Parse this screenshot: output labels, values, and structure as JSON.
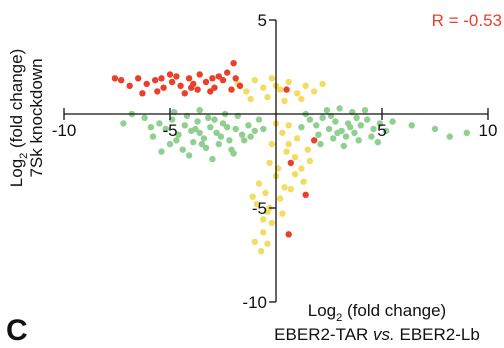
{
  "panel_label": "C",
  "colors": {
    "green": "#8fcf8f",
    "yellow": "#f2dc62",
    "red": "#e8402a",
    "axis": "#111111",
    "annotation": "#e8402a"
  },
  "chart_data": {
    "type": "scatter",
    "title": "",
    "annotation": "R = -0.53",
    "xlabel": {
      "line1_main": "Log",
      "line1_sub": "2",
      "line1_rest": " (fold change)",
      "line2_a": "EBER2-TAR ",
      "line2_italic": "vs.",
      "line2_b": " EBER2-Lb"
    },
    "ylabel": {
      "line1_main": "Log",
      "line1_sub": "2",
      "line1_rest": " (fold change)",
      "line2": "7Sk knockdown"
    },
    "xlim": [
      -10,
      10
    ],
    "ylim": [
      -10,
      5
    ],
    "x_ticks": [
      {
        "value": -10,
        "label": "-10"
      },
      {
        "value": -5,
        "label": "-5"
      },
      {
        "value": 5,
        "label": "5"
      },
      {
        "value": 10,
        "label": "10"
      }
    ],
    "y_ticks": [
      {
        "value": 5,
        "label": "5"
      },
      {
        "value": -5,
        "label": "-5"
      },
      {
        "value": -10,
        "label": "-10"
      }
    ],
    "grid": false,
    "series": [
      {
        "color_key": "green",
        "points": [
          [
            -5.5,
            -0.5
          ],
          [
            -5.2,
            -0.8
          ],
          [
            -4.9,
            -0.3
          ],
          [
            -4.6,
            -1.1
          ],
          [
            -4.3,
            -0.6
          ],
          [
            -4.0,
            -0.9
          ],
          [
            -3.7,
            -0.4
          ],
          [
            -3.4,
            -1.3
          ],
          [
            -3.1,
            -0.7
          ],
          [
            -2.8,
            -1.0
          ],
          [
            -2.5,
            -0.5
          ],
          [
            -2.2,
            -1.4
          ],
          [
            -1.9,
            -0.8
          ],
          [
            -1.6,
            -1.1
          ],
          [
            -1.3,
            -0.6
          ],
          [
            -1.0,
            -0.9
          ],
          [
            -5.8,
            -1.2
          ],
          [
            -5.0,
            -1.6
          ],
          [
            -4.4,
            -1.9
          ],
          [
            -3.9,
            -1.5
          ],
          [
            -3.3,
            -1.8
          ],
          [
            -2.7,
            -1.6
          ],
          [
            -2.1,
            -1.9
          ],
          [
            -1.5,
            -1.4
          ],
          [
            -6.2,
            -0.2
          ],
          [
            -4.8,
            0.1
          ],
          [
            -3.6,
            0.2
          ],
          [
            -2.4,
            0.0
          ],
          [
            -1.8,
            -0.1
          ],
          [
            -0.8,
            -0.3
          ],
          [
            -6.8,
            0.0
          ],
          [
            -7.2,
            -0.5
          ],
          [
            -4.1,
            -2.2
          ],
          [
            -3.0,
            -2.4
          ],
          [
            -2.0,
            -2.1
          ],
          [
            -5.4,
            -2.0
          ],
          [
            -3.6,
            -1.0
          ],
          [
            -3.2,
            -0.2
          ],
          [
            -2.6,
            -1.2
          ],
          [
            -4.7,
            -1.4
          ],
          [
            -3.8,
            -0.8
          ],
          [
            -2.9,
            -0.3
          ],
          [
            -3.5,
            -1.6
          ],
          [
            -4.2,
            -0.1
          ],
          [
            -2.3,
            -0.7
          ],
          [
            -1.2,
            -1.2
          ],
          [
            -0.6,
            -0.8
          ],
          [
            -5.9,
            -0.7
          ],
          [
            1.6,
            -0.3
          ],
          [
            1.9,
            -0.6
          ],
          [
            2.2,
            -0.2
          ],
          [
            2.5,
            -0.8
          ],
          [
            2.8,
            -0.4
          ],
          [
            3.1,
            -0.9
          ],
          [
            3.4,
            -0.5
          ],
          [
            3.7,
            -1.0
          ],
          [
            4.0,
            -0.6
          ],
          [
            4.3,
            -0.3
          ],
          [
            4.6,
            -0.8
          ],
          [
            4.9,
            -0.5
          ],
          [
            5.2,
            -0.9
          ],
          [
            2.0,
            -1.1
          ],
          [
            2.7,
            -1.3
          ],
          [
            3.3,
            -1.2
          ],
          [
            3.9,
            -1.4
          ],
          [
            4.5,
            -1.2
          ],
          [
            2.4,
            0.2
          ],
          [
            3.0,
            0.3
          ],
          [
            3.6,
            0.1
          ],
          [
            4.2,
            0.2
          ],
          [
            1.4,
            0.0
          ],
          [
            5.5,
            -0.4
          ],
          [
            2.1,
            -1.6
          ],
          [
            3.2,
            -1.7
          ],
          [
            1.2,
            -0.7
          ],
          [
            4.8,
            -1.5
          ],
          [
            2.6,
            -0.1
          ],
          [
            3.5,
            -0.7
          ],
          [
            3.8,
            -0.2
          ],
          [
            2.9,
            -1.0
          ],
          [
            7.5,
            -0.8
          ],
          [
            8.2,
            -1.2
          ],
          [
            9.0,
            -1.0
          ],
          [
            6.4,
            -0.6
          ]
        ]
      },
      {
        "color_key": "yellow",
        "points": [
          [
            -1.8,
            1.6
          ],
          [
            -1.4,
            1.2
          ],
          [
            -1.0,
            1.8
          ],
          [
            -0.6,
            1.4
          ],
          [
            -0.2,
            1.9
          ],
          [
            0.2,
            1.3
          ],
          [
            0.6,
            1.7
          ],
          [
            1.0,
            1.1
          ],
          [
            1.4,
            1.5
          ],
          [
            1.8,
            1.2
          ],
          [
            2.2,
            1.6
          ],
          [
            -1.2,
            0.8
          ],
          [
            -0.4,
            0.9
          ],
          [
            0.4,
            0.7
          ],
          [
            1.2,
            0.8
          ],
          [
            0.0,
            1.5
          ],
          [
            0.3,
            -1.0
          ],
          [
            0.6,
            -1.6
          ],
          [
            0.9,
            -2.3
          ],
          [
            1.2,
            -2.9
          ],
          [
            -0.3,
            -2.6
          ],
          [
            0.0,
            -3.3
          ],
          [
            0.4,
            -3.9
          ],
          [
            -0.5,
            -4.2
          ],
          [
            -0.9,
            -4.8
          ],
          [
            -0.4,
            -5.2
          ],
          [
            -0.2,
            -5.8
          ],
          [
            -0.6,
            -6.3
          ],
          [
            -1.0,
            -6.8
          ],
          [
            -0.7,
            -7.3
          ],
          [
            -0.3,
            -5.0
          ],
          [
            0.2,
            -4.5
          ],
          [
            0.7,
            -4.0
          ],
          [
            1.3,
            -3.6
          ],
          [
            1.6,
            -2.5
          ],
          [
            0.5,
            -2.0
          ],
          [
            -0.2,
            -1.6
          ],
          [
            0.9,
            -3.2
          ],
          [
            -0.8,
            -3.7
          ],
          [
            -0.4,
            -6.9
          ],
          [
            0.1,
            -2.9
          ],
          [
            1.0,
            -1.3
          ],
          [
            -0.6,
            -5.6
          ],
          [
            0.3,
            -5.3
          ],
          [
            -1.1,
            -4.4
          ],
          [
            1.5,
            -1.9
          ],
          [
            0.6,
            -0.6
          ],
          [
            0.0,
            -0.5
          ]
        ]
      },
      {
        "color_key": "red",
        "points": [
          [
            -7.3,
            1.8
          ],
          [
            -6.9,
            1.5
          ],
          [
            -6.5,
            1.9
          ],
          [
            -6.1,
            1.6
          ],
          [
            -5.7,
            1.8
          ],
          [
            -5.3,
            1.4
          ],
          [
            -4.9,
            1.7
          ],
          [
            -4.5,
            1.5
          ],
          [
            -4.1,
            1.9
          ],
          [
            -3.7,
            1.3
          ],
          [
            -3.3,
            1.7
          ],
          [
            -2.9,
            1.4
          ],
          [
            -2.5,
            1.8
          ],
          [
            -2.1,
            1.3
          ],
          [
            -1.7,
            1.5
          ],
          [
            -7.6,
            1.9
          ],
          [
            -5.0,
            2.1
          ],
          [
            -3.6,
            2.1
          ],
          [
            -2.3,
            2.2
          ],
          [
            -4.3,
            1.1
          ],
          [
            -3.1,
            1.2
          ],
          [
            -5.6,
            1.2
          ],
          [
            -6.3,
            1.1
          ],
          [
            -4.7,
            2.0
          ],
          [
            -2.7,
            2.0
          ],
          [
            -3.9,
            1.6
          ],
          [
            -5.4,
            1.9
          ],
          [
            -1.9,
            1.9
          ],
          [
            -3.0,
            1.9
          ],
          [
            -4.0,
            1.4
          ],
          [
            -2.0,
            2.7
          ],
          [
            0.5,
            1.3
          ],
          [
            1.8,
            -1.4
          ],
          [
            0.7,
            -2.6
          ],
          [
            1.4,
            -4.3
          ],
          [
            0.6,
            -6.4
          ]
        ]
      }
    ]
  }
}
